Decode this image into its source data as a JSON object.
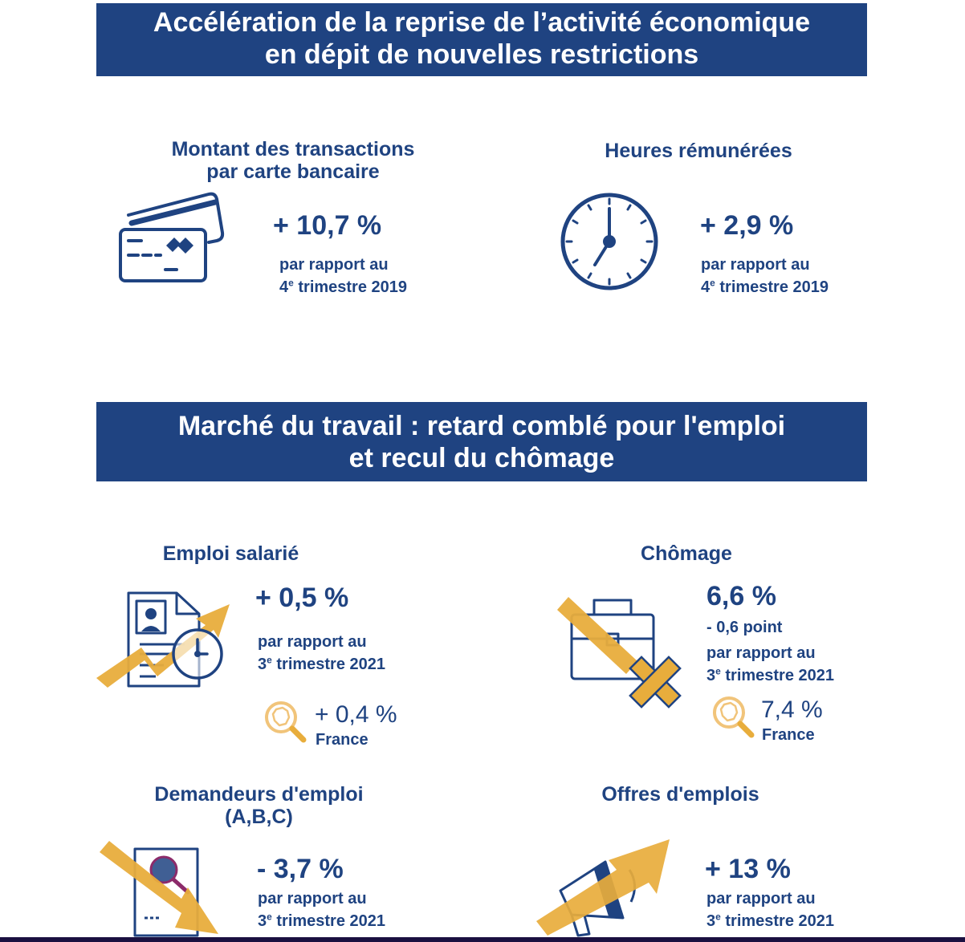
{
  "banners": {
    "activity": [
      "Accélération de la reprise de l’activité économique",
      "en dépit de nouvelles restrictions"
    ],
    "labour": [
      "Marché du travail : retard comblé pour l'emploi",
      "et recul du chômage"
    ]
  },
  "colors": {
    "navy": "#1f4381",
    "gold": "#e8ad3c",
    "white": "#ffffff"
  },
  "indicators": {
    "card": {
      "title": [
        "Montant des transactions",
        "par carte bancaire"
      ],
      "value": "+ 10,7 %",
      "ref_line1": "par rapport au",
      "ref_num": "4",
      "ref_sup": "e",
      "ref_rest": " trimestre 2019",
      "icon": "credit-card-icon"
    },
    "hours": {
      "title": [
        "Heures rémunérées"
      ],
      "value": "+ 2,9 %",
      "ref_line1": "par rapport au",
      "ref_num": "4",
      "ref_sup": "e",
      "ref_rest": " trimestre 2019",
      "icon": "clock-icon"
    },
    "employment": {
      "title": [
        "Emploi salarié"
      ],
      "value": "+ 0,5 %",
      "ref_line1": "par rapport au",
      "ref_num": "3",
      "ref_sup": "e",
      "ref_rest": " trimestre 2021",
      "france_value": "+ 0,4 %",
      "france_label": "France",
      "icon": "cv-clock-arrow-up-icon"
    },
    "unemployment": {
      "title": [
        "Chômage"
      ],
      "value": "6,6 %",
      "change": "- 0,6 point",
      "ref_line1": "par rapport au",
      "ref_num": "3",
      "ref_sup": "e",
      "ref_rest": " trimestre 2021",
      "france_value": "7,4 %",
      "france_label": "France",
      "icon": "briefcase-cross-icon"
    },
    "jobseekers": {
      "title": [
        "Demandeurs d'emploi",
        "(A,B,C)"
      ],
      "value": "- 3,7 %",
      "ref_line1": "par rapport au",
      "ref_num": "3",
      "ref_sup": "e",
      "ref_rest": " trimestre 2021",
      "icon": "document-search-arrow-down-icon"
    },
    "offers": {
      "title": [
        "Offres d'emplois"
      ],
      "value": "+ 13 %",
      "ref_line1": "par rapport au",
      "ref_num": "3",
      "ref_sup": "e",
      "ref_rest": " trimestre 2021",
      "icon": "megaphone-arrow-up-icon"
    }
  }
}
